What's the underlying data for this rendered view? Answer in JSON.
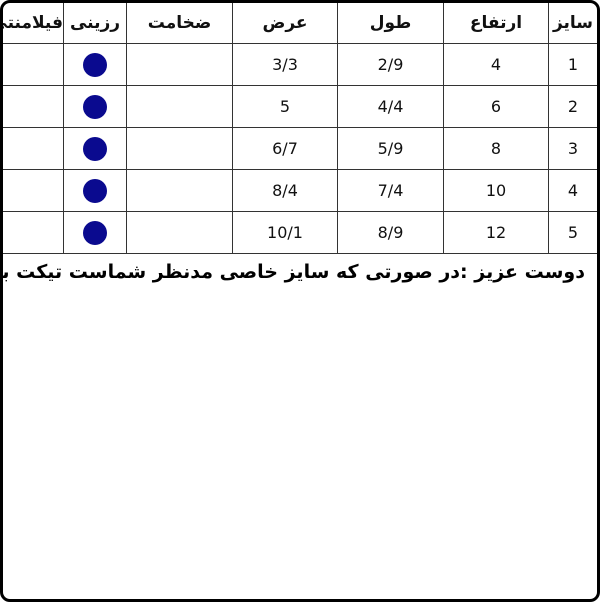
{
  "headers": [
    "سایز",
    "ارتفاع",
    "طول",
    "عرض",
    "ضخامت",
    "رزینی",
    "فیلامنتی"
  ],
  "rows": [
    {
      "size": "1",
      "height": "4",
      "length": "2/9",
      "width": "3/3",
      "thickness": "",
      "resin": true,
      "filament": ""
    },
    {
      "size": "2",
      "height": "6",
      "length": "4/4",
      "width": "5",
      "thickness": "",
      "resin": true,
      "filament": ""
    },
    {
      "size": "3",
      "height": "8",
      "length": "5/9",
      "width": "6/7",
      "thickness": "",
      "resin": true,
      "filament": ""
    },
    {
      "size": "4",
      "height": "10",
      "length": "7/4",
      "width": "8/4",
      "thickness": "",
      "resin": true,
      "filament": ""
    },
    {
      "size": "5",
      "height": "12",
      "length": "8/9",
      "width": "10/1",
      "thickness": "",
      "resin": true,
      "filament": ""
    }
  ],
  "note": "دوست عزیز :در صورتی که سایز خاصی مدنظر شماست تیکت بزنید",
  "colors": {
    "dot": "#0a0a8f"
  }
}
